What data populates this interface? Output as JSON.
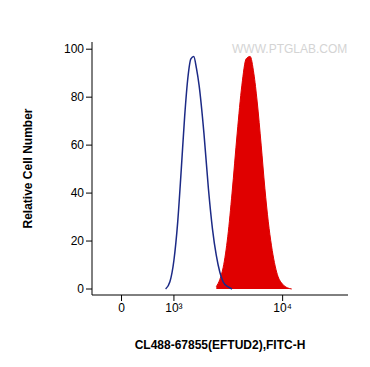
{
  "chart_data": {
    "type": "line",
    "x_label": "CL488-67855(EFTUD2),FITC-H",
    "y_label": "Relative Cell Number",
    "annotations": [
      "WWW.PTGLAB.COM"
    ],
    "x": [
      800,
      900,
      1000,
      1100,
      1200,
      1300,
      1400,
      1500,
      1600,
      1700,
      1800,
      2000,
      2200,
      2400,
      2600,
      2800,
      3000,
      3300,
      3600,
      4000,
      4400,
      4800,
      5200,
      5600,
      6000,
      6500,
      7000,
      7500,
      8000,
      9000,
      10000,
      11000,
      12000
    ],
    "series": [
      {
        "type": "line",
        "color": "#1c2a86",
        "values": [
          0,
          3,
          12,
          28,
          50,
          72,
          88,
          96,
          97,
          92,
          85,
          65,
          42,
          25,
          14,
          7,
          3,
          1,
          0,
          null,
          null,
          null,
          null,
          null,
          null,
          null,
          null,
          null,
          null,
          null,
          null,
          null,
          null
        ]
      },
      {
        "type": "area",
        "color": "#e00000",
        "values": [
          null,
          null,
          null,
          null,
          null,
          null,
          null,
          null,
          null,
          null,
          null,
          null,
          null,
          null,
          1,
          4,
          9,
          22,
          40,
          65,
          85,
          96,
          97,
          90,
          78,
          60,
          42,
          28,
          18,
          6,
          2,
          0.5,
          0
        ]
      }
    ],
    "xlim": [
      -500,
      37000
    ],
    "xticks": [
      0,
      {
        "value": 1000,
        "label": "10³"
      },
      {
        "value": 10000,
        "label": "10⁴"
      }
    ],
    "ylim": [
      -2.5,
      103
    ],
    "yticks": [
      0,
      20,
      40,
      60,
      80,
      100
    ],
    "grid": false
  }
}
